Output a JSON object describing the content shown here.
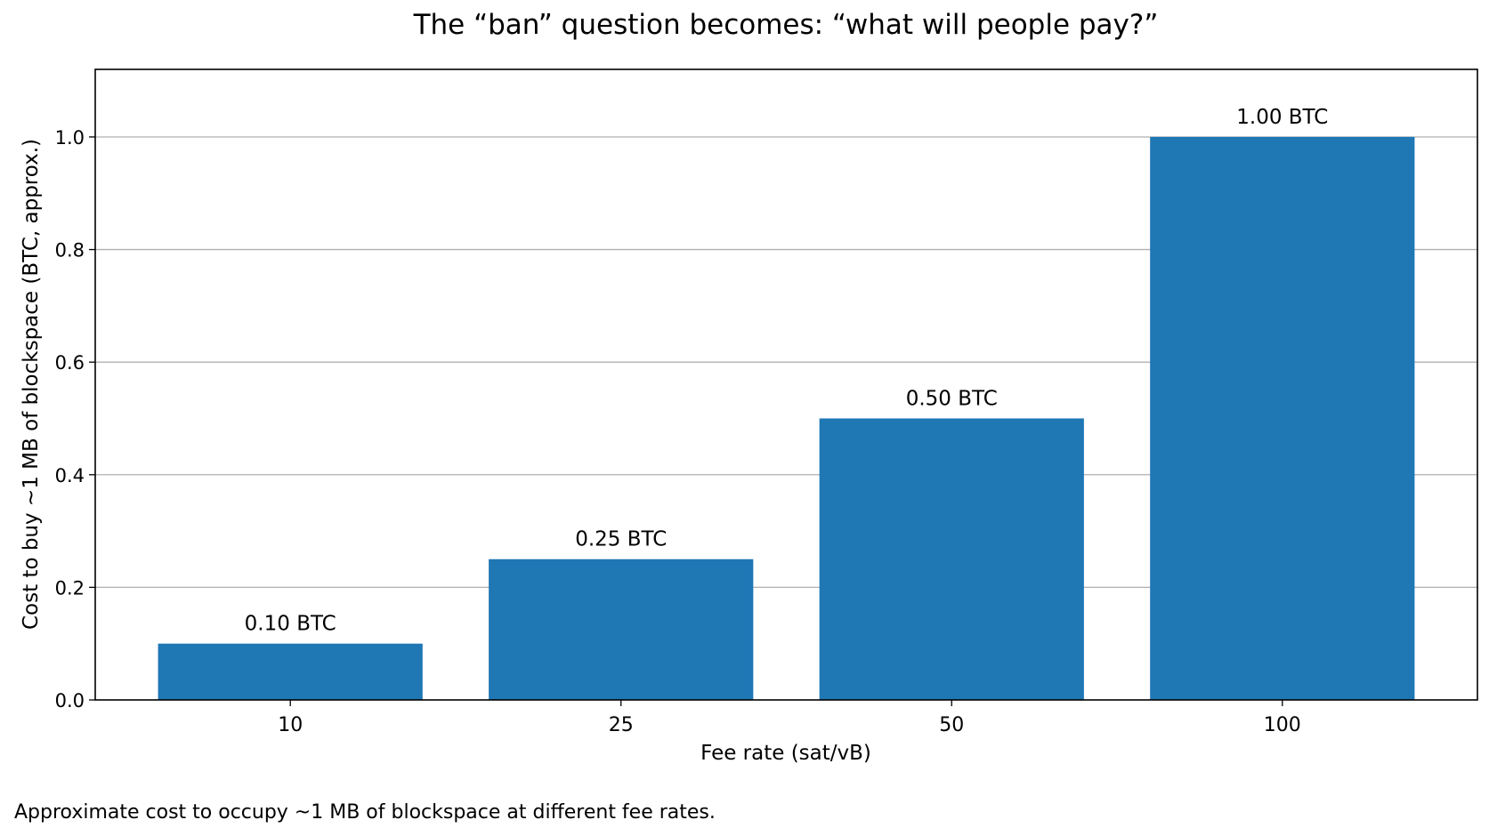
{
  "chart_data": {
    "type": "bar",
    "title": "The “ban” question becomes: “what will people pay?”",
    "xlabel": "Fee rate (sat/vB)",
    "ylabel": "Cost to buy ~1 MB of blockspace (BTC, approx.)",
    "categories": [
      "10",
      "25",
      "50",
      "100"
    ],
    "values": [
      0.1,
      0.25,
      0.5,
      1.0
    ],
    "data_labels": [
      "0.10 BTC",
      "0.25 BTC",
      "0.50 BTC",
      "1.00 BTC"
    ],
    "ylim": [
      0,
      1.12
    ],
    "yticks": [
      "0.0",
      "0.2",
      "0.4",
      "0.6",
      "0.8",
      "1.0"
    ],
    "grid": "horizontal",
    "legend": "none",
    "bar_color": "#1f77b4",
    "grid_color": "#b0b0b0"
  },
  "caption": "Approximate cost to occupy ~1 MB of blockspace at different fee rates."
}
